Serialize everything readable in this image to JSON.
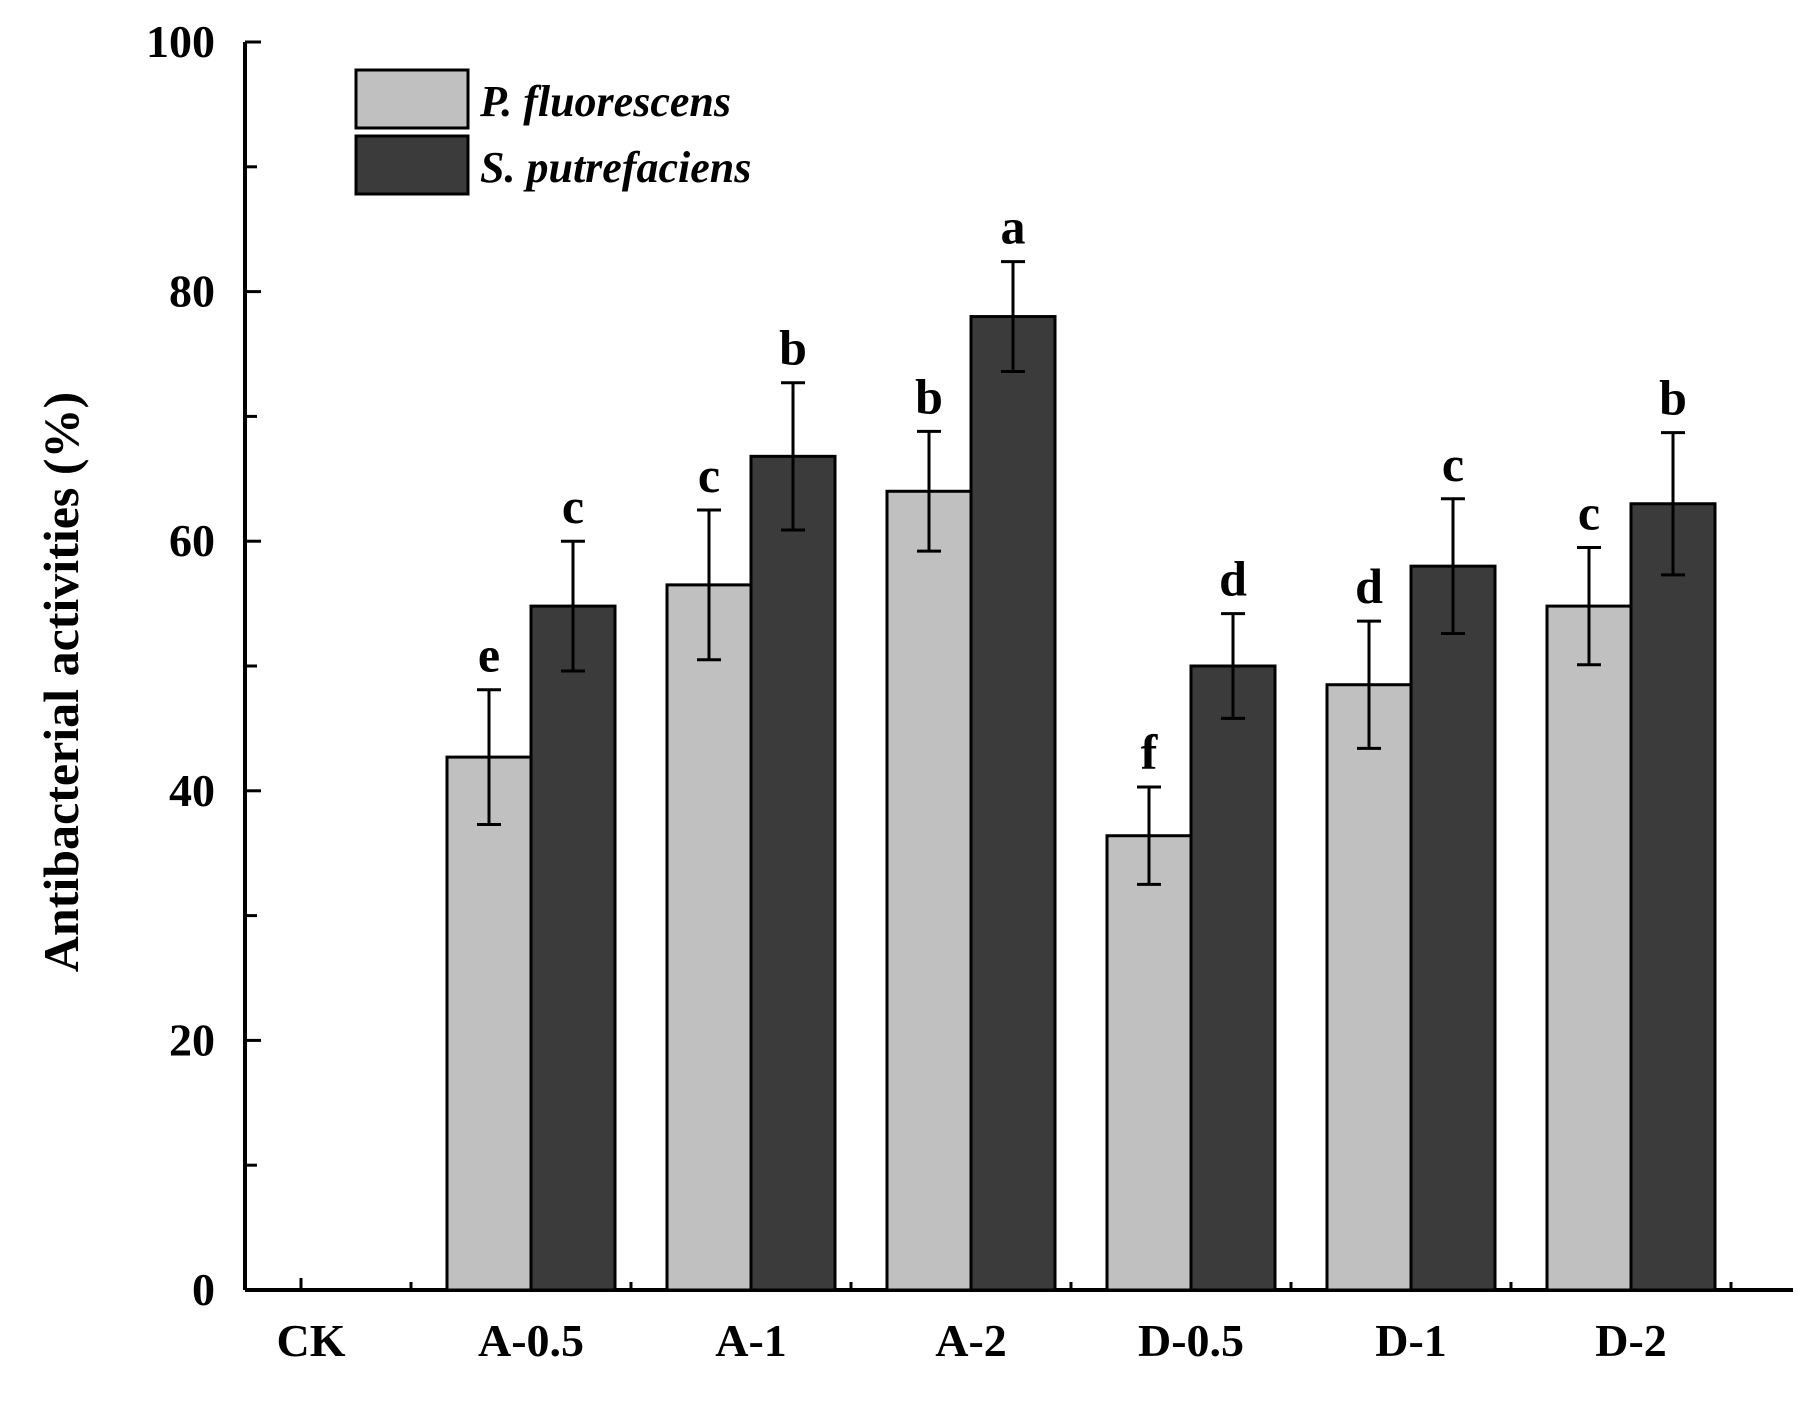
{
  "chart_data": {
    "type": "bar",
    "title": "",
    "xlabel": "",
    "ylabel": "Antibacterial activities (%)",
    "ylim": [
      0,
      100
    ],
    "yticks": [
      0,
      20,
      40,
      60,
      80,
      100
    ],
    "categories": [
      "CK",
      "A-0.5",
      "A-1",
      "A-2",
      "D-0.5",
      "D-1",
      "D-2"
    ],
    "legend_position": "top-left",
    "series": [
      {
        "name": "P. fluorescens",
        "color": "#c0c0c0",
        "values": [
          0,
          42.7,
          56.5,
          64.0,
          36.4,
          48.5,
          54.8
        ],
        "errors": [
          0,
          5.4,
          6.0,
          4.8,
          3.9,
          5.1,
          4.7
        ],
        "sig": [
          "",
          "e",
          "c",
          "b",
          "f",
          "d",
          "c"
        ]
      },
      {
        "name": "S. putrefaciens",
        "color": "#3b3b3b",
        "values": [
          0,
          54.8,
          66.8,
          78.0,
          50.0,
          58.0,
          63.0
        ],
        "errors": [
          0,
          5.2,
          5.9,
          4.4,
          4.2,
          5.4,
          5.7
        ],
        "sig": [
          "",
          "c",
          "b",
          "a",
          "d",
          "c",
          "b"
        ]
      }
    ]
  }
}
